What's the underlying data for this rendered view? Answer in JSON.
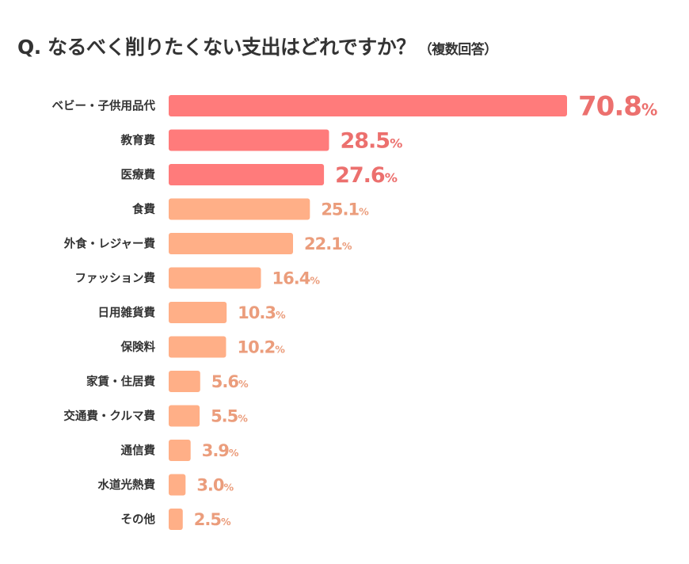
{
  "title": "Q. なるべく削りたくない支出はどれですか？",
  "subtitle": "（複数回答）",
  "chart_data": {
    "type": "bar",
    "orientation": "horizontal",
    "title": "Q. なるべく削りたくない支出はどれですか？（複数回答）",
    "categories": [
      "ベビー・子供用品代",
      "教育費",
      "医療費",
      "食費",
      "外食・レジャー費",
      "ファッション費",
      "日用雑貨費",
      "保険料",
      "家賃・住居費",
      "交通費・クルマ費",
      "通信費",
      "水道光熱費",
      "その他"
    ],
    "values": [
      70.8,
      28.5,
      27.6,
      25.1,
      22.1,
      16.4,
      10.3,
      10.2,
      5.6,
      5.5,
      3.9,
      3.0,
      2.5
    ],
    "labels": [
      "70.8",
      "28.5",
      "27.6",
      "25.1",
      "22.1",
      "16.4",
      "10.3",
      "10.2",
      "5.6",
      "5.5",
      "3.9",
      "3.0",
      "2.5"
    ],
    "unit": "%",
    "xlim": [
      0,
      70.8
    ],
    "grid": false,
    "colors": {
      "top": "#FF7B7B",
      "top_label": "#EC706E",
      "rest": "#FFAF87",
      "rest_label": "#EB9D7C"
    },
    "highlight_top_n": 3
  }
}
